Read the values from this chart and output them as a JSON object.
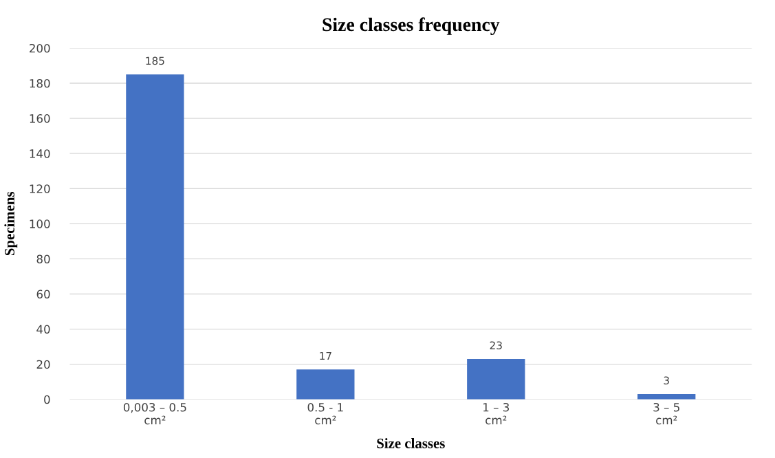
{
  "chart_data": {
    "type": "bar",
    "title": "Size classes frequency",
    "xlabel": "Size classes",
    "ylabel": "Specimens",
    "categories": [
      "0,003 – 0.5\ncm²",
      "0.5 - 1\ncm²",
      "1 – 3\ncm²",
      "3 – 5\ncm²"
    ],
    "values": [
      185,
      17,
      23,
      3
    ],
    "color": "#4472c4",
    "ylim": [
      0,
      200
    ],
    "yticks": [
      0,
      20,
      40,
      60,
      80,
      100,
      120,
      140,
      160,
      180,
      200
    ],
    "grid": "y",
    "data_labels": true
  }
}
